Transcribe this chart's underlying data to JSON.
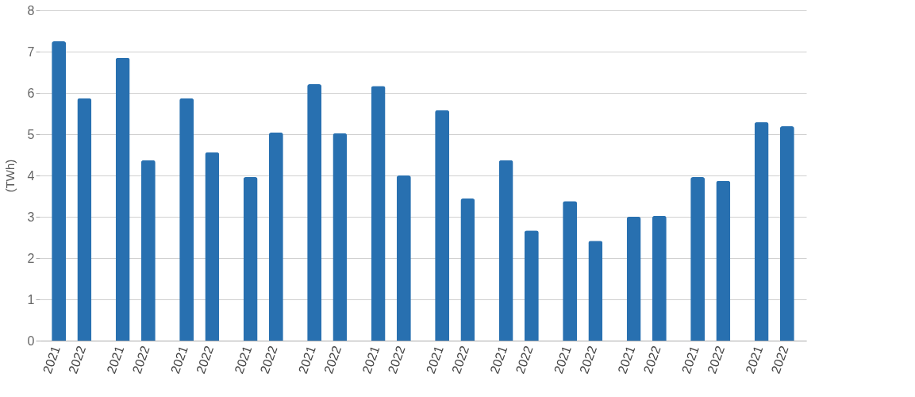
{
  "chart_data": {
    "type": "bar",
    "ylabel": "(TWh)",
    "categories": [
      "2021",
      "2022",
      "2021",
      "2022",
      "2021",
      "2022",
      "2021",
      "2022",
      "2021",
      "2022",
      "2021",
      "2022",
      "2021",
      "2022",
      "2021",
      "2022",
      "2021",
      "2022",
      "2021",
      "2022",
      "2021",
      "2022",
      "2021",
      "2022"
    ],
    "series": [
      {
        "color": "#2870b0",
        "values": [
          7.25,
          5.87,
          6.85,
          4.37,
          5.87,
          4.56,
          3.96,
          5.04,
          6.21,
          5.02,
          6.17,
          4.0,
          5.58,
          3.44,
          4.37,
          2.67,
          3.38,
          2.42,
          3.0,
          3.02,
          3.96,
          3.87,
          5.29,
          5.19
        ]
      }
    ],
    "ylim": [
      0,
      8
    ],
    "yticks": [
      0,
      1,
      2,
      3,
      4,
      5,
      6,
      7,
      8
    ],
    "grid": "y"
  }
}
